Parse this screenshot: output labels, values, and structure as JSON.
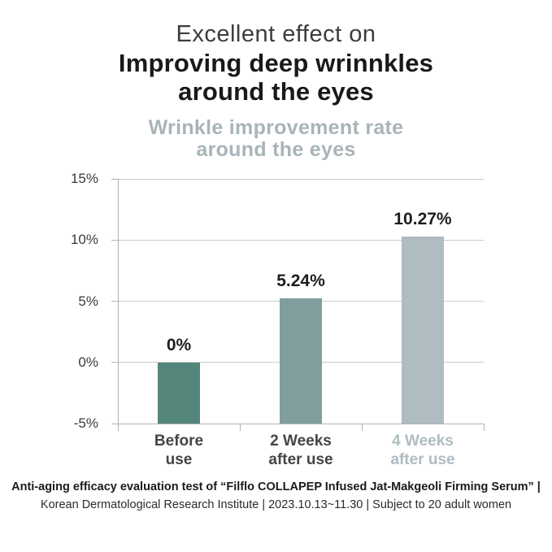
{
  "header": {
    "line1": "Excellent effect on",
    "line2": "Improving deep wrinnkles",
    "line3": "around the eyes"
  },
  "chart_data": {
    "type": "bar",
    "title": "Wrinkle improvement rate around the eyes",
    "title_lines": [
      "Wrinkle improvement rate",
      "around the eyes"
    ],
    "title_color": "#a8b4b8",
    "categories": [
      "Before use",
      "2 Weeks after use",
      "4 Weeks after use"
    ],
    "category_lines": [
      [
        "Before",
        "use"
      ],
      [
        "2 Weeks",
        "after use"
      ],
      [
        "4 Weeks",
        "after use"
      ]
    ],
    "values": [
      0,
      5.24,
      10.27
    ],
    "value_labels": [
      "0%",
      "5.24%",
      "10.27%"
    ],
    "bar_colors": [
      "#55867c",
      "#809e9e",
      "#afbcc1"
    ],
    "category_label_colors": [
      "#454545",
      "#454545",
      "#afbcc1"
    ],
    "ylim": [
      -5,
      15
    ],
    "baseline": -5,
    "yticks": [
      15,
      10,
      5,
      0,
      -5
    ],
    "ytick_labels": [
      "15%",
      "10%",
      "5%",
      "0%",
      "-5%"
    ],
    "grid": true,
    "legend": "none",
    "xlabel": "",
    "ylabel": ""
  },
  "footer": {
    "line1": "Anti-aging efficacy evaluation test of “Filflo COLLAPEP Infused Jat-Makgeoli Firming Serum” |",
    "line2": "Korean Dermatological Research Institute | 2023.10.13~11.30 | Subject to 20 adult women"
  }
}
